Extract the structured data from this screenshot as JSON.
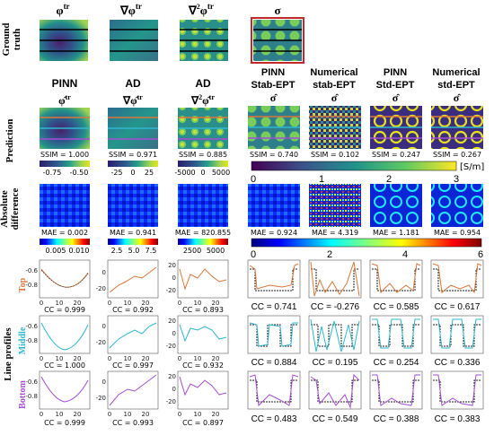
{
  "figure": {
    "row_labels": {
      "ground_truth": "Ground truth",
      "prediction": "Prediction",
      "abs_diff": "Absolute difference",
      "line_profiles": "Line profiles"
    },
    "profile_rows": [
      {
        "label": "Top",
        "color": "#d9773a"
      },
      {
        "label": "Middle",
        "color": "#2fb7cf"
      },
      {
        "label": "Bottom",
        "color": "#a64fd1"
      }
    ],
    "gt_titles": [
      "φ^tr",
      "∇φ^tr",
      "∇²φ^tr",
      "σ"
    ],
    "col_headers": [
      [
        "PINN",
        "φ̂^tr"
      ],
      [
        "AD",
        "∇φ̂^tr"
      ],
      [
        "AD",
        "∇²φ̂^tr"
      ],
      [
        "PINN",
        "Stab-EPT",
        "σ̂"
      ],
      [
        "Numerical",
        "stab-EPT",
        "σ̂"
      ],
      [
        "PINN",
        "Std-EPT",
        "σ̂"
      ],
      [
        "Numerical",
        "std-EPT",
        "σ̂"
      ]
    ],
    "ssim": [
      "SSIM = 1.000",
      "SSIM = 0.971",
      "SSIM = 0.885",
      "SSIM = 0.740",
      "SSIM = 0.102",
      "SSIM = 0.247",
      "SSIM = 0.267"
    ],
    "mae": [
      "MAE = 0.002",
      "MAE = 0.941",
      "MAE = 820.855",
      "MAE = 0.924",
      "MAE = 4.319",
      "MAE = 1.181",
      "MAE = 0.954"
    ],
    "cc": [
      [
        "CC = 0.999",
        "CC = 0.992",
        "CC = 0.893",
        "CC = 0.741",
        "CC = -0.276",
        "CC = 0.585",
        "CC = 0.617"
      ],
      [
        "CC = 1.000",
        "CC = 0.997",
        "CC = 0.932",
        "CC = 0.884",
        "CC = 0.195",
        "CC = 0.254",
        "CC = 0.336"
      ],
      [
        "CC = 0.999",
        "CC = 0.993",
        "CC = 0.897",
        "CC = 0.483",
        "CC = 0.549",
        "CC = 0.388",
        "CC = 0.383"
      ]
    ],
    "pred_colorbars": [
      {
        "ticks": [
          "-0.75",
          "-0.50"
        ]
      },
      {
        "ticks": [
          "-25",
          "0",
          "25"
        ]
      },
      {
        "ticks": [
          "-5000",
          "0",
          "5000"
        ]
      }
    ],
    "sigma_colorbar": {
      "ticks": [
        "0",
        "1",
        "2",
        "3"
      ],
      "unit": "[S/m]"
    },
    "diff_colorbars": [
      {
        "ticks": [
          "0.005",
          "0.010"
        ]
      },
      {
        "ticks": [
          "2.5",
          "5.0",
          "7.5"
        ]
      },
      {
        "ticks": [
          "2500",
          "5000"
        ]
      }
    ],
    "diff_wide_colorbar": {
      "ticks": [
        "0",
        "2",
        "4",
        "6"
      ]
    },
    "profile_axes": {
      "col0": {
        "yticks": [
          "-0.6",
          "-0.8"
        ],
        "xticks": [
          "0",
          "10",
          "20"
        ]
      },
      "col1": {
        "yticks": [
          "0",
          "-20"
        ],
        "xticks": [
          "0",
          "10",
          "20"
        ]
      },
      "col2": {
        "yticks": [
          "20",
          "0",
          "-20"
        ],
        "xticks": [
          "0",
          "10",
          "20"
        ]
      }
    },
    "colors": {
      "gt_border": "#c0282d",
      "jet": [
        "#00007f",
        "#0000ff",
        "#0080ff",
        "#00ffff",
        "#80ff80",
        "#ffff00",
        "#ff8000",
        "#ff0000",
        "#7f0000"
      ],
      "viridis": [
        "#440154",
        "#3b528b",
        "#21918c",
        "#5ec962",
        "#fde725"
      ],
      "pred_cmap": [
        "#2a1d6b",
        "#2e5a8c",
        "#26a18a",
        "#a8d84c",
        "#e7e419"
      ]
    }
  }
}
